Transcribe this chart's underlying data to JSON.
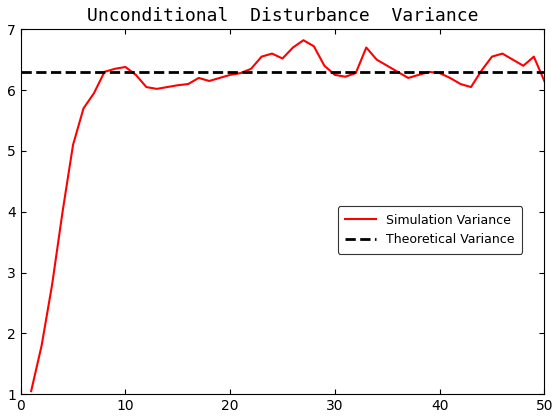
{
  "title": "Unconditional  Disturbance  Variance",
  "xlim": [
    0,
    50
  ],
  "ylim": [
    1,
    7
  ],
  "xticks": [
    0,
    10,
    20,
    30,
    40,
    50
  ],
  "yticks": [
    1,
    2,
    3,
    4,
    5,
    6,
    7
  ],
  "theoretical_variance": 6.3,
  "sim_color": "#ff0000",
  "theo_color": "#000000",
  "legend_labels": [
    "Simulation Variance",
    "Theoretical Variance"
  ],
  "background_color": "#ffffff",
  "sim_x": [
    1,
    2,
    3,
    4,
    5,
    6,
    7,
    8,
    9,
    10,
    11,
    12,
    13,
    14,
    15,
    16,
    17,
    18,
    19,
    20,
    21,
    22,
    23,
    24,
    25,
    26,
    27,
    28,
    29,
    30,
    31,
    32,
    33,
    34,
    35,
    36,
    37,
    38,
    39,
    40,
    41,
    42,
    43,
    44,
    45,
    46,
    47,
    48,
    49,
    50
  ],
  "sim_y": [
    1.05,
    1.8,
    2.8,
    4.0,
    5.1,
    5.7,
    5.95,
    6.3,
    6.35,
    6.38,
    6.25,
    6.05,
    6.02,
    6.05,
    6.08,
    6.1,
    6.2,
    6.15,
    6.2,
    6.25,
    6.28,
    6.35,
    6.55,
    6.6,
    6.52,
    6.7,
    6.82,
    6.72,
    6.4,
    6.25,
    6.22,
    6.28,
    6.7,
    6.5,
    6.4,
    6.3,
    6.2,
    6.25,
    6.3,
    6.28,
    6.2,
    6.1,
    6.05,
    6.32,
    6.55,
    6.6,
    6.5,
    6.4,
    6.55,
    6.15
  ]
}
